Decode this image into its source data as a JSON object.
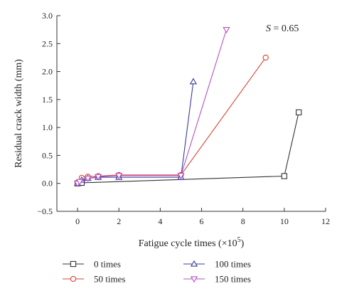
{
  "chart_data": {
    "type": "line",
    "title": "",
    "xlabel": "Fatigue cycle times (×10",
    "xlabel_sup": "5",
    "xlabel_close": ")",
    "ylabel": "Residual crack width (mm)",
    "xlim": [
      -1,
      12
    ],
    "ylim": [
      -0.5,
      3.0
    ],
    "xticks": [
      0,
      2,
      4,
      6,
      8,
      10,
      12
    ],
    "yticks": [
      -0.5,
      0.0,
      0.5,
      1.0,
      1.5,
      2.0,
      2.5,
      3.0
    ],
    "xtick_labels": [
      "0",
      "2",
      "4",
      "6",
      "8",
      "10",
      "12"
    ],
    "ytick_labels": [
      "−0.5",
      "0.0",
      "0.5",
      "1.0",
      "1.5",
      "2.0",
      "2.5",
      "3.0"
    ],
    "grid": false,
    "legend_position": "bottom",
    "annotation": {
      "italic": "S",
      "rest": " = 0.65"
    },
    "series": [
      {
        "name": "0 times",
        "color": "#333333",
        "marker": "square",
        "x": [
          0,
          0.1,
          0.2,
          10,
          10.7
        ],
        "y": [
          0,
          0.01,
          0.01,
          0.13,
          1.27
        ]
      },
      {
        "name": "50 times",
        "color": "#d9442f",
        "marker": "circle",
        "x": [
          0,
          0.2,
          0.5,
          1,
          2,
          5,
          9.1
        ],
        "y": [
          0,
          0.1,
          0.12,
          0.13,
          0.15,
          0.15,
          2.25
        ]
      },
      {
        "name": "100 times",
        "color": "#3a3b9c",
        "marker": "triangle-up",
        "x": [
          0,
          0.2,
          0.5,
          1,
          2,
          5,
          5.6
        ],
        "y": [
          0,
          0.06,
          0.09,
          0.11,
          0.11,
          0.11,
          1.82
        ]
      },
      {
        "name": "150 times",
        "color": "#b550c0",
        "marker": "triangle-down",
        "x": [
          0,
          0.1,
          0.5,
          1,
          2,
          5,
          7.2
        ],
        "y": [
          0,
          0.03,
          0.09,
          0.12,
          0.14,
          0.14,
          2.75
        ]
      }
    ]
  }
}
